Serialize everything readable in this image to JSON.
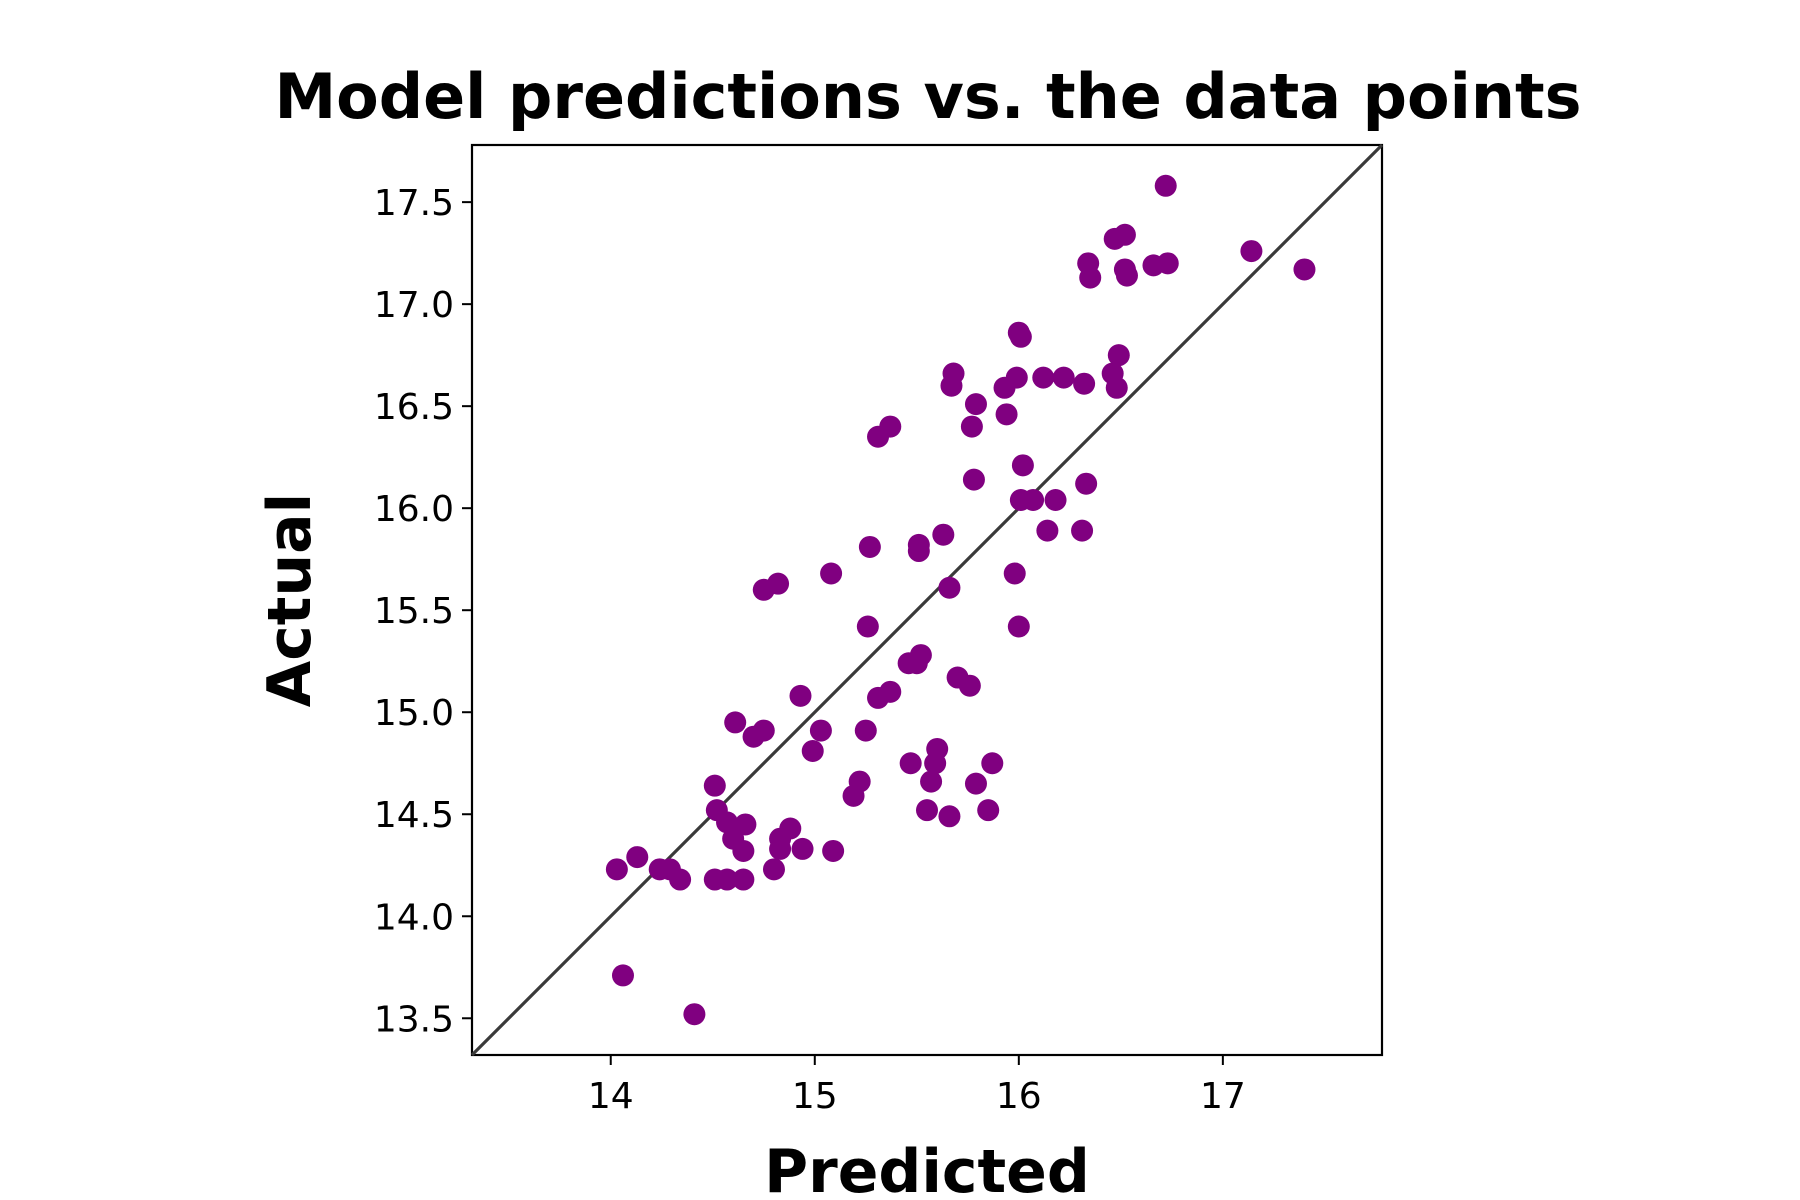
{
  "chart_data": {
    "type": "scatter",
    "title": "Model predictions vs. the data points",
    "xlabel": "Predicted",
    "ylabel": "Actual",
    "xlim": [
      13.32,
      17.78
    ],
    "ylim": [
      13.32,
      17.78
    ],
    "x_ticks": [
      14,
      15,
      16,
      17
    ],
    "x_tick_labels": [
      "14",
      "15",
      "16",
      "17"
    ],
    "y_ticks": [
      13.5,
      14.0,
      14.5,
      15.0,
      15.5,
      16.0,
      16.5,
      17.0,
      17.5
    ],
    "y_tick_labels": [
      "13.5",
      "14.0",
      "14.5",
      "15.0",
      "15.5",
      "16.0",
      "16.5",
      "17.0",
      "17.5"
    ],
    "reference_line": "y = x",
    "point_color": "#800080",
    "line_color": "#3a3a3a",
    "grid": false,
    "points": [
      {
        "x": 14.03,
        "y": 14.23
      },
      {
        "x": 14.06,
        "y": 13.71
      },
      {
        "x": 14.13,
        "y": 14.29
      },
      {
        "x": 14.24,
        "y": 14.23
      },
      {
        "x": 14.29,
        "y": 14.23
      },
      {
        "x": 14.34,
        "y": 14.18
      },
      {
        "x": 14.41,
        "y": 13.52
      },
      {
        "x": 14.51,
        "y": 14.64
      },
      {
        "x": 14.52,
        "y": 14.52
      },
      {
        "x": 14.51,
        "y": 14.18
      },
      {
        "x": 14.57,
        "y": 14.18
      },
      {
        "x": 14.57,
        "y": 14.46
      },
      {
        "x": 14.6,
        "y": 14.38
      },
      {
        "x": 14.61,
        "y": 14.95
      },
      {
        "x": 14.66,
        "y": 14.45
      },
      {
        "x": 14.65,
        "y": 14.32
      },
      {
        "x": 14.65,
        "y": 14.18
      },
      {
        "x": 14.7,
        "y": 14.88
      },
      {
        "x": 14.75,
        "y": 14.91
      },
      {
        "x": 14.75,
        "y": 15.6
      },
      {
        "x": 14.82,
        "y": 15.63
      },
      {
        "x": 14.8,
        "y": 14.23
      },
      {
        "x": 14.83,
        "y": 14.38
      },
      {
        "x": 14.83,
        "y": 14.33
      },
      {
        "x": 14.88,
        "y": 14.43
      },
      {
        "x": 14.93,
        "y": 15.08
      },
      {
        "x": 14.94,
        "y": 14.33
      },
      {
        "x": 14.99,
        "y": 14.81
      },
      {
        "x": 15.03,
        "y": 14.91
      },
      {
        "x": 15.08,
        "y": 15.68
      },
      {
        "x": 15.09,
        "y": 14.32
      },
      {
        "x": 15.19,
        "y": 14.59
      },
      {
        "x": 15.22,
        "y": 14.66
      },
      {
        "x": 15.25,
        "y": 14.91
      },
      {
        "x": 15.26,
        "y": 15.42
      },
      {
        "x": 15.27,
        "y": 15.81
      },
      {
        "x": 15.31,
        "y": 16.35
      },
      {
        "x": 15.31,
        "y": 15.07
      },
      {
        "x": 15.37,
        "y": 16.4
      },
      {
        "x": 15.37,
        "y": 15.1
      },
      {
        "x": 15.46,
        "y": 15.24
      },
      {
        "x": 15.47,
        "y": 14.75
      },
      {
        "x": 15.5,
        "y": 15.24
      },
      {
        "x": 15.51,
        "y": 15.82
      },
      {
        "x": 15.51,
        "y": 15.79
      },
      {
        "x": 15.52,
        "y": 15.28
      },
      {
        "x": 15.55,
        "y": 14.52
      },
      {
        "x": 15.57,
        "y": 14.66
      },
      {
        "x": 15.59,
        "y": 14.75
      },
      {
        "x": 15.6,
        "y": 14.82
      },
      {
        "x": 15.63,
        "y": 15.87
      },
      {
        "x": 15.66,
        "y": 15.61
      },
      {
        "x": 15.66,
        "y": 14.49
      },
      {
        "x": 15.67,
        "y": 16.6
      },
      {
        "x": 15.68,
        "y": 16.66
      },
      {
        "x": 15.7,
        "y": 15.17
      },
      {
        "x": 15.76,
        "y": 15.13
      },
      {
        "x": 15.77,
        "y": 16.4
      },
      {
        "x": 15.78,
        "y": 16.14
      },
      {
        "x": 15.79,
        "y": 16.51
      },
      {
        "x": 15.79,
        "y": 14.65
      },
      {
        "x": 15.85,
        "y": 14.52
      },
      {
        "x": 15.87,
        "y": 14.75
      },
      {
        "x": 15.93,
        "y": 16.59
      },
      {
        "x": 15.94,
        "y": 16.46
      },
      {
        "x": 15.98,
        "y": 15.68
      },
      {
        "x": 15.99,
        "y": 16.64
      },
      {
        "x": 16.0,
        "y": 15.42
      },
      {
        "x": 16.0,
        "y": 16.86
      },
      {
        "x": 16.01,
        "y": 16.84
      },
      {
        "x": 16.01,
        "y": 16.04
      },
      {
        "x": 16.02,
        "y": 16.21
      },
      {
        "x": 16.07,
        "y": 16.04
      },
      {
        "x": 16.12,
        "y": 16.64
      },
      {
        "x": 16.14,
        "y": 15.89
      },
      {
        "x": 16.18,
        "y": 16.04
      },
      {
        "x": 16.22,
        "y": 16.64
      },
      {
        "x": 16.31,
        "y": 15.89
      },
      {
        "x": 16.32,
        "y": 16.61
      },
      {
        "x": 16.33,
        "y": 16.12
      },
      {
        "x": 16.34,
        "y": 17.2
      },
      {
        "x": 16.35,
        "y": 17.13
      },
      {
        "x": 16.46,
        "y": 16.66
      },
      {
        "x": 16.47,
        "y": 17.32
      },
      {
        "x": 16.48,
        "y": 16.59
      },
      {
        "x": 16.49,
        "y": 16.75
      },
      {
        "x": 16.52,
        "y": 17.34
      },
      {
        "x": 16.52,
        "y": 17.17
      },
      {
        "x": 16.53,
        "y": 17.14
      },
      {
        "x": 16.66,
        "y": 17.19
      },
      {
        "x": 16.72,
        "y": 17.58
      },
      {
        "x": 16.73,
        "y": 17.2
      },
      {
        "x": 17.14,
        "y": 17.26
      },
      {
        "x": 17.4,
        "y": 17.17
      }
    ]
  }
}
